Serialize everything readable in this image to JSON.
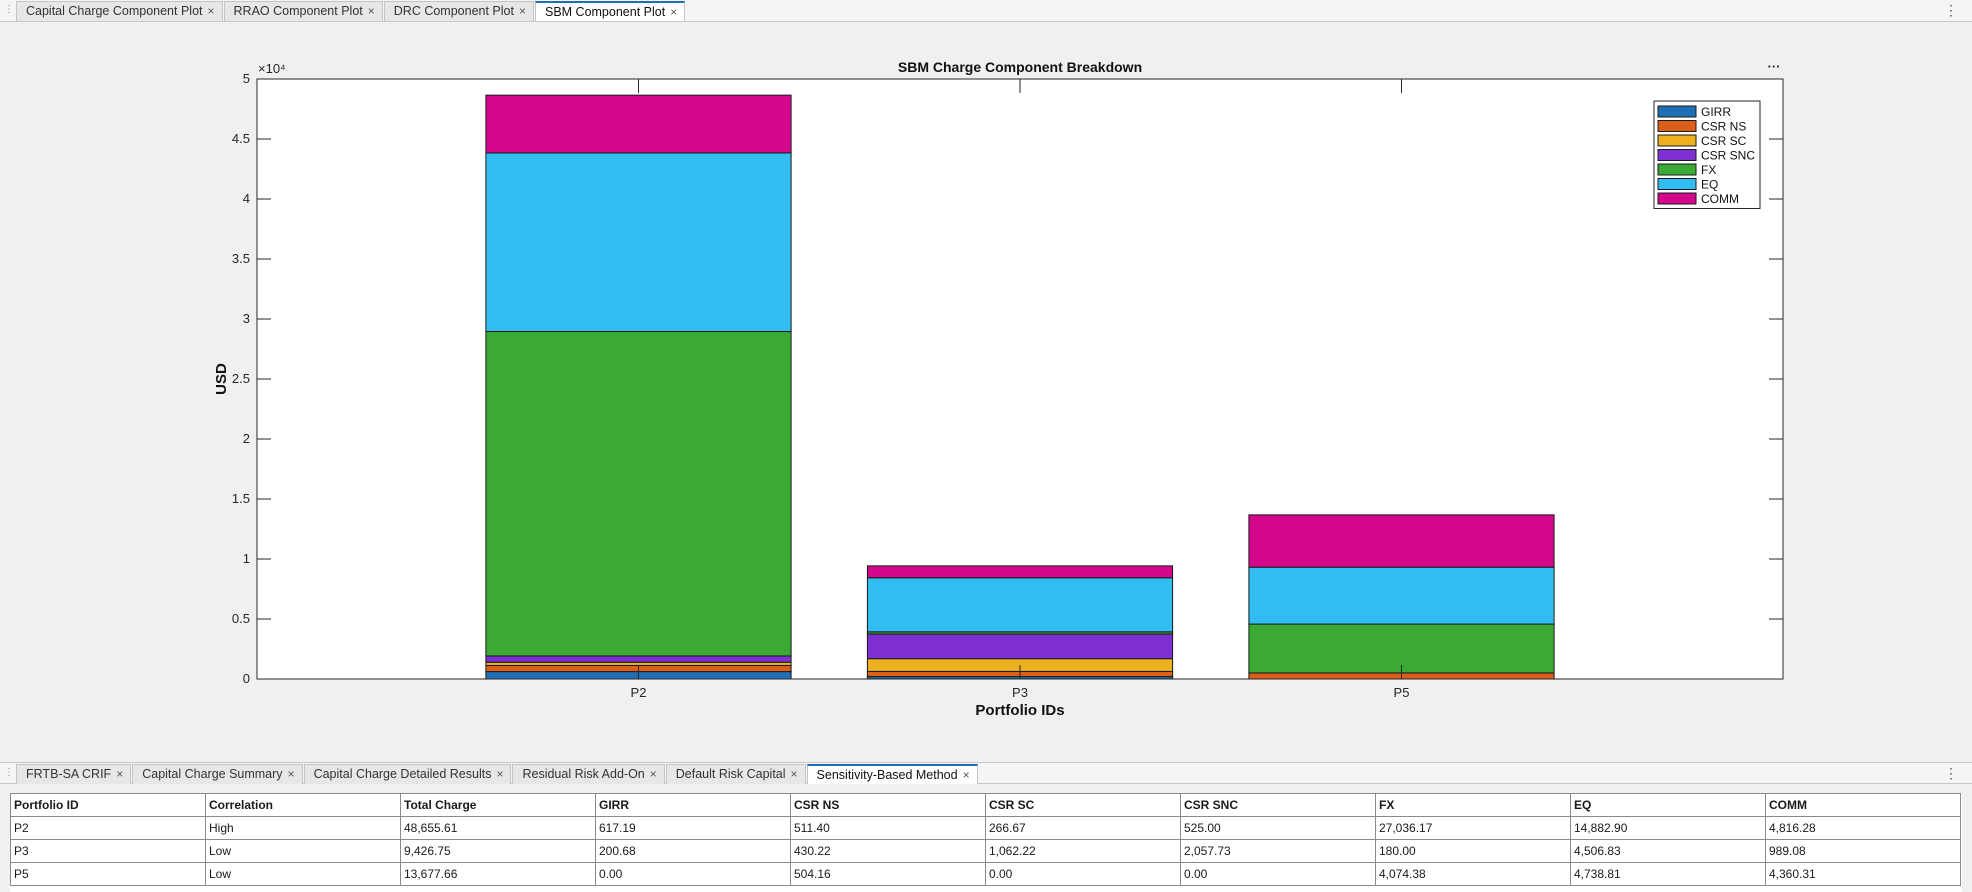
{
  "top_tabs": [
    {
      "label": "Capital Charge Component Plot",
      "active": false
    },
    {
      "label": "RRAO Component Plot",
      "active": false
    },
    {
      "label": "DRC Component Plot",
      "active": false
    },
    {
      "label": "SBM Component Plot",
      "active": true
    }
  ],
  "bottom_tabs": [
    {
      "label": "FRTB-SA CRIF",
      "active": false
    },
    {
      "label": "Capital Charge Summary",
      "active": false
    },
    {
      "label": "Capital Charge Detailed Results",
      "active": false
    },
    {
      "label": "Residual Risk Add-On",
      "active": false
    },
    {
      "label": "Default Risk Capital",
      "active": false
    },
    {
      "label": "Sensitivity-Based Method",
      "active": true
    }
  ],
  "icons": {
    "close": "close-icon",
    "menu": "kebab-menu-icon",
    "grip": "grip-icon",
    "chart_menu": "ellipsis-icon"
  },
  "chart_data": {
    "type": "bar",
    "stacked": true,
    "title": "SBM Charge Component Breakdown",
    "xlabel": "Portfolio IDs",
    "ylabel": "USD",
    "exponent_label": "×10⁴",
    "ylim": [
      0,
      50000
    ],
    "yticks": [
      0,
      5000,
      10000,
      15000,
      20000,
      25000,
      30000,
      35000,
      40000,
      45000,
      50000
    ],
    "yticklabels": [
      "0",
      "0.5",
      "1",
      "1.5",
      "2",
      "2.5",
      "3",
      "3.5",
      "4",
      "4.5",
      "5"
    ],
    "categories": [
      "P2",
      "P3",
      "P5"
    ],
    "legend_position": "top-right",
    "series": [
      {
        "name": "GIRR",
        "color": "#1f6fb6",
        "values": [
          617.19,
          200.68,
          0.0
        ]
      },
      {
        "name": "CSR NS",
        "color": "#d95f1a",
        "values": [
          511.4,
          430.22,
          504.16
        ]
      },
      {
        "name": "CSR SC",
        "color": "#edb120",
        "values": [
          266.67,
          1062.22,
          0.0
        ]
      },
      {
        "name": "CSR SNC",
        "color": "#7e2fd2",
        "values": [
          525.0,
          2057.73,
          0.0
        ]
      },
      {
        "name": "FX",
        "color": "#3aaa35",
        "values": [
          27036.17,
          180.0,
          4074.38
        ]
      },
      {
        "name": "EQ",
        "color": "#31bdf0",
        "values": [
          14882.9,
          4506.83,
          4738.81
        ]
      },
      {
        "name": "COMM",
        "color": "#d4078c",
        "values": [
          4816.28,
          989.08,
          4360.31
        ]
      }
    ]
  },
  "table": {
    "columns": [
      "Portfolio ID",
      "Correlation",
      "Total Charge",
      "GIRR",
      "CSR NS",
      "CSR SC",
      "CSR SNC",
      "FX",
      "EQ",
      "COMM"
    ],
    "rows": [
      [
        "P2",
        "High",
        "48,655.61",
        "617.19",
        "511.40",
        "266.67",
        "525.00",
        "27,036.17",
        "14,882.90",
        "4,816.28"
      ],
      [
        "P3",
        "Low",
        "9,426.75",
        "200.68",
        "430.22",
        "1,062.22",
        "2,057.73",
        "180.00",
        "4,506.83",
        "989.08"
      ],
      [
        "P5",
        "Low",
        "13,677.66",
        "0.00",
        "504.16",
        "0.00",
        "0.00",
        "4,074.38",
        "4,738.81",
        "4,360.31"
      ]
    ]
  }
}
